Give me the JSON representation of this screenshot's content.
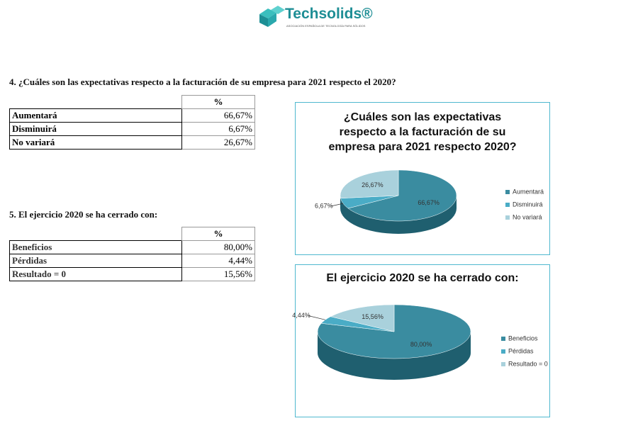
{
  "header": {
    "logo_name": "Techsolids®",
    "logo_tagline": "ASOCIACIÓN ESPAÑOLA DE TECNOLOGÍA PARA SÓLIDOS"
  },
  "sections": [
    {
      "question": "4. ¿Cuáles son las expectativas respecto a la facturación de su empresa para 2021 respecto el 2020?",
      "table": {
        "header": "%",
        "rows": [
          [
            "Aumentará",
            "66,67%"
          ],
          [
            "Disminuirá",
            "6,67%"
          ],
          [
            "No variará",
            "26,67%"
          ]
        ]
      }
    },
    {
      "question": "5. El ejercicio 2020 se ha cerrado con:",
      "table": {
        "header": "%",
        "rows": [
          [
            "Beneficios",
            "80,00%"
          ],
          [
            "Pérdidas",
            "4,44%"
          ],
          [
            "Resultado = 0",
            "15,56%"
          ]
        ]
      }
    }
  ],
  "chart_data": [
    {
      "type": "pie",
      "title": "¿Cuáles son las expectativas respecto a la facturación de su empresa para 2021 respecto 2020?",
      "categories": [
        "Aumentará",
        "Disminuirá",
        "No variará"
      ],
      "values": [
        66.67,
        6.67,
        26.67
      ],
      "value_labels": [
        "66,67%",
        "6,67%",
        "26,67%"
      ],
      "colors": [
        "#3a8ca0",
        "#4aacc6",
        "#a9d1dc"
      ]
    },
    {
      "type": "pie",
      "title": "El ejercicio 2020 se ha cerrado con:",
      "categories": [
        "Beneficios",
        "Pérdidas",
        "Resultado = 0"
      ],
      "values": [
        80.0,
        4.44,
        15.56
      ],
      "value_labels": [
        "80,00%",
        "4,44%",
        "15,56%"
      ],
      "colors": [
        "#3a8ca0",
        "#4aacc6",
        "#a9d1dc"
      ]
    }
  ]
}
